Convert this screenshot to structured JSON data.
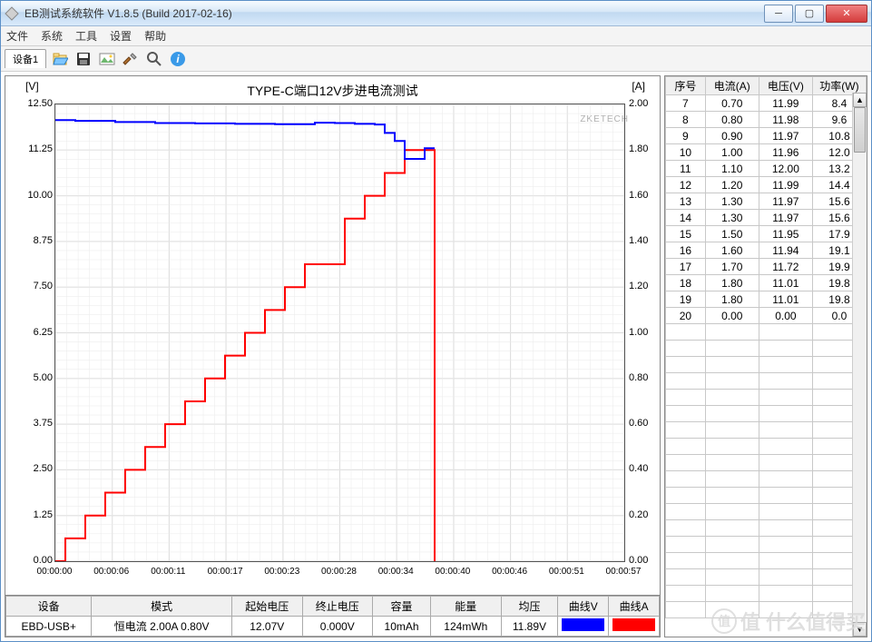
{
  "window": {
    "title": "EB测试系统软件 V1.8.5 (Build 2017-02-16)"
  },
  "menu": {
    "file": "文件",
    "system": "系统",
    "tools": "工具",
    "settings": "设置",
    "help": "帮助"
  },
  "toolbar": {
    "tab1": "设备1"
  },
  "chart": {
    "title": "TYPE-C端口12V步进电流测试",
    "y_left_label": "[V]",
    "y_right_label": "[A]",
    "watermark": "ZKETECH",
    "left_axis": {
      "min": 0.0,
      "max": 12.5,
      "ticks": [
        "0.00",
        "1.25",
        "2.50",
        "3.75",
        "5.00",
        "6.25",
        "7.50",
        "8.75",
        "10.00",
        "11.25",
        "12.50"
      ]
    },
    "right_axis": {
      "min": 0.0,
      "max": 2.0,
      "ticks": [
        "0.00",
        "0.20",
        "0.40",
        "0.60",
        "0.80",
        "1.00",
        "1.20",
        "1.40",
        "1.60",
        "1.80",
        "2.00"
      ]
    },
    "x_axis": {
      "min": 0,
      "max": 57,
      "ticks": [
        "00:00:00",
        "00:00:06",
        "00:00:11",
        "00:00:17",
        "00:00:23",
        "00:00:28",
        "00:00:34",
        "00:00:40",
        "00:00:46",
        "00:00:51",
        "00:00:57"
      ]
    },
    "colors": {
      "voltage": "#0000ff",
      "current": "#ff0000",
      "grid": "#d0d0d0",
      "grid_minor": "#eaeaea",
      "border": "#555555",
      "bg": "#ffffff"
    },
    "voltage_series": [
      [
        0,
        12.07
      ],
      [
        2,
        12.07
      ],
      [
        2,
        12.05
      ],
      [
        6,
        12.05
      ],
      [
        6,
        12.02
      ],
      [
        10,
        12.02
      ],
      [
        10,
        11.99
      ],
      [
        14,
        11.99
      ],
      [
        14,
        11.98
      ],
      [
        18,
        11.98
      ],
      [
        18,
        11.97
      ],
      [
        22,
        11.97
      ],
      [
        22,
        11.96
      ],
      [
        26,
        11.96
      ],
      [
        26,
        12.0
      ],
      [
        28,
        12.0
      ],
      [
        28,
        11.99
      ],
      [
        30,
        11.99
      ],
      [
        30,
        11.97
      ],
      [
        32,
        11.97
      ],
      [
        32,
        11.95
      ],
      [
        33,
        11.95
      ],
      [
        33,
        11.72
      ],
      [
        34,
        11.72
      ],
      [
        34,
        11.5
      ],
      [
        35,
        11.5
      ],
      [
        35,
        11.01
      ],
      [
        37,
        11.01
      ],
      [
        37,
        11.3
      ],
      [
        38,
        11.3
      ]
    ],
    "current_series": [
      [
        0,
        0.0
      ],
      [
        1,
        0.0
      ],
      [
        1,
        0.1
      ],
      [
        3,
        0.1
      ],
      [
        3,
        0.2
      ],
      [
        5,
        0.2
      ],
      [
        5,
        0.3
      ],
      [
        7,
        0.3
      ],
      [
        7,
        0.4
      ],
      [
        9,
        0.4
      ],
      [
        9,
        0.5
      ],
      [
        11,
        0.5
      ],
      [
        11,
        0.6
      ],
      [
        13,
        0.6
      ],
      [
        13,
        0.7
      ],
      [
        15,
        0.7
      ],
      [
        15,
        0.8
      ],
      [
        17,
        0.8
      ],
      [
        17,
        0.9
      ],
      [
        19,
        0.9
      ],
      [
        19,
        1.0
      ],
      [
        21,
        1.0
      ],
      [
        21,
        1.1
      ],
      [
        23,
        1.1
      ],
      [
        23,
        1.2
      ],
      [
        25,
        1.2
      ],
      [
        25,
        1.3
      ],
      [
        27,
        1.3
      ],
      [
        27,
        1.3
      ],
      [
        29,
        1.3
      ],
      [
        29,
        1.5
      ],
      [
        31,
        1.5
      ],
      [
        31,
        1.6
      ],
      [
        33,
        1.6
      ],
      [
        33,
        1.7
      ],
      [
        35,
        1.7
      ],
      [
        35,
        1.8
      ],
      [
        37,
        1.8
      ],
      [
        37,
        1.8
      ],
      [
        38,
        1.8
      ],
      [
        38,
        0.0
      ]
    ]
  },
  "results": {
    "headers": {
      "device": "设备",
      "mode": "模式",
      "start_v": "起始电压",
      "end_v": "终止电压",
      "capacity": "容量",
      "energy": "能量",
      "avg_v": "均压",
      "curve_v": "曲线V",
      "curve_a": "曲线A"
    },
    "row": {
      "device": "EBD-USB+",
      "mode": "恒电流 2.00A 0.80V",
      "start_v": "12.07V",
      "end_v": "0.000V",
      "capacity": "10mAh",
      "energy": "124mWh",
      "avg_v": "11.89V"
    }
  },
  "datatable": {
    "headers": {
      "seq": "序号",
      "current": "电流(A)",
      "voltage": "电压(V)",
      "power": "功率(W)"
    },
    "rows": [
      {
        "seq": "7",
        "i": "0.70",
        "v": "11.99",
        "p": "8.4"
      },
      {
        "seq": "8",
        "i": "0.80",
        "v": "11.98",
        "p": "9.6"
      },
      {
        "seq": "9",
        "i": "0.90",
        "v": "11.97",
        "p": "10.8"
      },
      {
        "seq": "10",
        "i": "1.00",
        "v": "11.96",
        "p": "12.0"
      },
      {
        "seq": "11",
        "i": "1.10",
        "v": "12.00",
        "p": "13.2"
      },
      {
        "seq": "12",
        "i": "1.20",
        "v": "11.99",
        "p": "14.4"
      },
      {
        "seq": "13",
        "i": "1.30",
        "v": "11.97",
        "p": "15.6"
      },
      {
        "seq": "14",
        "i": "1.30",
        "v": "11.97",
        "p": "15.6"
      },
      {
        "seq": "15",
        "i": "1.50",
        "v": "11.95",
        "p": "17.9"
      },
      {
        "seq": "16",
        "i": "1.60",
        "v": "11.94",
        "p": "19.1"
      },
      {
        "seq": "17",
        "i": "1.70",
        "v": "11.72",
        "p": "19.9"
      },
      {
        "seq": "18",
        "i": "1.80",
        "v": "11.01",
        "p": "19.8"
      },
      {
        "seq": "19",
        "i": "1.80",
        "v": "11.01",
        "p": "19.8"
      },
      {
        "seq": "20",
        "i": "0.00",
        "v": "0.00",
        "p": "0.0"
      }
    ],
    "empty_rows": 18
  },
  "corner_watermark": "值  什么值得买"
}
